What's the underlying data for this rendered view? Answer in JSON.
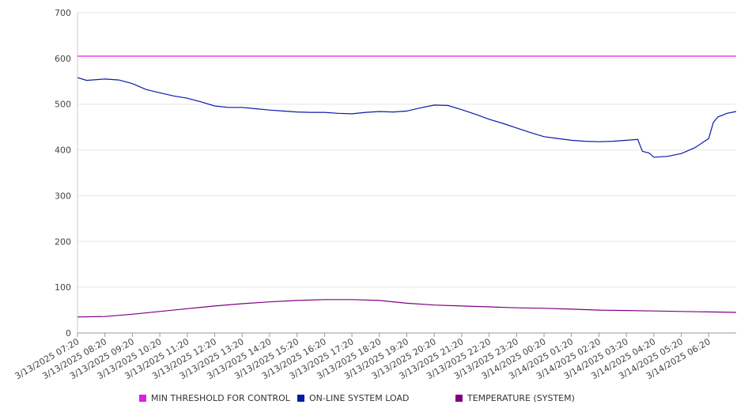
{
  "chart_data": {
    "type": "line",
    "title": "",
    "xlabel": "",
    "ylabel": "",
    "ylim": [
      0,
      700
    ],
    "y_ticks": [
      0,
      100,
      200,
      300,
      400,
      500,
      600,
      700
    ],
    "grid": "horizontal",
    "legend_position": "bottom",
    "x_ticks": [
      "3/13/2025 07:20",
      "3/13/2025 08:20",
      "3/13/2025 09:20",
      "3/13/2025 10:20",
      "3/13/2025 11:20",
      "3/13/2025 12:20",
      "3/13/2025 13:20",
      "3/13/2025 14:20",
      "3/13/2025 15:20",
      "3/13/2025 16:20",
      "3/13/2025 17:20",
      "3/13/2025 18:20",
      "3/13/2025 19:20",
      "3/13/2025 20:20",
      "3/13/2025 21:20",
      "3/13/2025 22:20",
      "3/13/2025 23:20",
      "3/14/2025 00:20",
      "3/14/2025 01:20",
      "3/14/2025 02:20",
      "3/14/2025 03:20",
      "3/14/2025 04:20",
      "3/14/2025 05:20",
      "3/14/2025 06:20"
    ],
    "x_range": [
      "3/13/2025 07:20",
      "3/14/2025 07:20"
    ],
    "series": [
      {
        "name": "MIN THRESHOLD FOR CONTROL",
        "color": "#e020e0",
        "points": [
          [
            "3/13/2025 07:20",
            605
          ],
          [
            "3/14/2025 07:20",
            605
          ]
        ]
      },
      {
        "name": "ON-LINE SYSTEM LOAD",
        "color": "#0a1aa8",
        "points": [
          [
            "3/13/2025 07:20",
            558
          ],
          [
            "3/13/2025 07:40",
            552
          ],
          [
            "3/13/2025 08:20",
            555
          ],
          [
            "3/13/2025 08:50",
            553
          ],
          [
            "3/13/2025 09:20",
            545
          ],
          [
            "3/13/2025 09:50",
            532
          ],
          [
            "3/13/2025 10:20",
            525
          ],
          [
            "3/13/2025 10:50",
            518
          ],
          [
            "3/13/2025 11:20",
            513
          ],
          [
            "3/13/2025 11:50",
            505
          ],
          [
            "3/13/2025 12:20",
            496
          ],
          [
            "3/13/2025 12:50",
            493
          ],
          [
            "3/13/2025 13:20",
            493
          ],
          [
            "3/13/2025 13:50",
            490
          ],
          [
            "3/13/2025 14:20",
            487
          ],
          [
            "3/13/2025 14:50",
            485
          ],
          [
            "3/13/2025 15:20",
            483
          ],
          [
            "3/13/2025 15:50",
            482
          ],
          [
            "3/13/2025 16:20",
            482
          ],
          [
            "3/13/2025 16:50",
            480
          ],
          [
            "3/13/2025 17:20",
            479
          ],
          [
            "3/13/2025 17:50",
            482
          ],
          [
            "3/13/2025 18:20",
            484
          ],
          [
            "3/13/2025 18:50",
            483
          ],
          [
            "3/13/2025 19:20",
            485
          ],
          [
            "3/13/2025 19:50",
            492
          ],
          [
            "3/13/2025 20:20",
            498
          ],
          [
            "3/13/2025 20:50",
            497
          ],
          [
            "3/13/2025 21:20",
            488
          ],
          [
            "3/13/2025 21:50",
            478
          ],
          [
            "3/13/2025 22:20",
            467
          ],
          [
            "3/13/2025 22:50",
            458
          ],
          [
            "3/13/2025 23:20",
            448
          ],
          [
            "3/13/2025 23:50",
            438
          ],
          [
            "3/14/2025 00:20",
            429
          ],
          [
            "3/14/2025 00:50",
            425
          ],
          [
            "3/14/2025 01:20",
            421
          ],
          [
            "3/14/2025 01:50",
            419
          ],
          [
            "3/14/2025 02:20",
            418
          ],
          [
            "3/14/2025 02:50",
            419
          ],
          [
            "3/14/2025 03:20",
            421
          ],
          [
            "3/14/2025 03:45",
            423
          ],
          [
            "3/14/2025 03:55",
            397
          ],
          [
            "3/14/2025 04:10",
            393
          ],
          [
            "3/14/2025 04:20",
            384
          ],
          [
            "3/14/2025 04:50",
            386
          ],
          [
            "3/14/2025 05:20",
            392
          ],
          [
            "3/14/2025 05:50",
            405
          ],
          [
            "3/14/2025 06:20",
            425
          ],
          [
            "3/14/2025 06:30",
            460
          ],
          [
            "3/14/2025 06:40",
            472
          ],
          [
            "3/14/2025 07:00",
            480
          ],
          [
            "3/14/2025 07:20",
            484
          ]
        ]
      },
      {
        "name": "TEMPERATURE (SYSTEM)",
        "color": "#800080",
        "points": [
          [
            "3/13/2025 07:20",
            35
          ],
          [
            "3/13/2025 08:20",
            36
          ],
          [
            "3/13/2025 09:20",
            41
          ],
          [
            "3/13/2025 10:20",
            47
          ],
          [
            "3/13/2025 11:20",
            53
          ],
          [
            "3/13/2025 12:20",
            59
          ],
          [
            "3/13/2025 13:20",
            64
          ],
          [
            "3/13/2025 14:20",
            68
          ],
          [
            "3/13/2025 15:20",
            71
          ],
          [
            "3/13/2025 16:20",
            73
          ],
          [
            "3/13/2025 17:20",
            73
          ],
          [
            "3/13/2025 18:20",
            71
          ],
          [
            "3/13/2025 19:20",
            65
          ],
          [
            "3/13/2025 20:20",
            61
          ],
          [
            "3/13/2025 21:20",
            59
          ],
          [
            "3/13/2025 22:20",
            57
          ],
          [
            "3/13/2025 23:20",
            55
          ],
          [
            "3/14/2025 00:20",
            54
          ],
          [
            "3/14/2025 01:20",
            52
          ],
          [
            "3/14/2025 02:20",
            50
          ],
          [
            "3/14/2025 03:20",
            49
          ],
          [
            "3/14/2025 04:20",
            48
          ],
          [
            "3/14/2025 05:20",
            47
          ],
          [
            "3/14/2025 06:20",
            46
          ],
          [
            "3/14/2025 07:20",
            45
          ]
        ]
      }
    ]
  }
}
